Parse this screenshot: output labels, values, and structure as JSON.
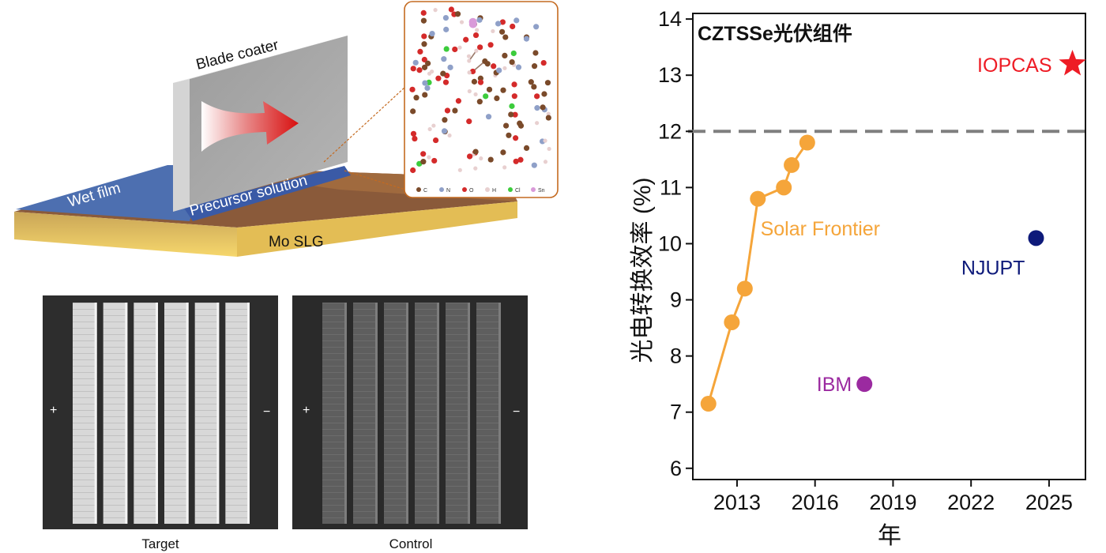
{
  "schematic": {
    "blade_label": "Blade coater",
    "wet_film_label": "Wet film",
    "precursor_label": "Precursor solution",
    "substrate_label": "Mo SLG",
    "inset_elements": [
      {
        "symbol": "C",
        "color": "#7a4a2a"
      },
      {
        "symbol": "N",
        "color": "#8fa0c8"
      },
      {
        "symbol": "O",
        "color": "#d42a2a"
      },
      {
        "symbol": "H",
        "color": "#e8d0d0"
      },
      {
        "symbol": "Cl",
        "color": "#3ccc3c"
      },
      {
        "symbol": "Sn",
        "color": "#d99ad9"
      }
    ]
  },
  "photos": {
    "target_caption": "Target",
    "control_caption": "Control",
    "plus_sign": "+",
    "minus_sign": "−"
  },
  "chart_data": {
    "type": "scatter",
    "title": "CZTSSe光伏组件",
    "xlabel": "年",
    "ylabel": "光电转换效率 (%)",
    "xlim": [
      2011.3,
      2026.4
    ],
    "ylim": [
      5.8,
      14.1
    ],
    "xticks": [
      2013,
      2016,
      2019,
      2022,
      2025
    ],
    "yticks": [
      6,
      7,
      8,
      9,
      10,
      11,
      12,
      13,
      14
    ],
    "reference_line": {
      "y": 12,
      "style": "dashed",
      "color": "#7f7f7f"
    },
    "series": [
      {
        "name": "Solar Frontier",
        "color": "#f5a53a",
        "marker": "circle",
        "connected": true,
        "x": [
          2011.9,
          2012.8,
          2013.3,
          2013.8,
          2014.8,
          2015.1,
          2015.7
        ],
        "y": [
          7.15,
          8.6,
          9.2,
          10.8,
          11.0,
          11.4,
          11.8
        ]
      },
      {
        "name": "IBM",
        "color": "#9b2aa0",
        "marker": "circle",
        "connected": false,
        "x": [
          2017.9
        ],
        "y": [
          7.5
        ]
      },
      {
        "name": "NJUPT",
        "color": "#0e1a7a",
        "marker": "circle",
        "connected": false,
        "x": [
          2024.5
        ],
        "y": [
          10.1
        ]
      },
      {
        "name": "IOPCAS",
        "color": "#ee1c25",
        "marker": "star",
        "connected": false,
        "x": [
          2025.9
        ],
        "y": [
          13.2
        ]
      }
    ]
  }
}
